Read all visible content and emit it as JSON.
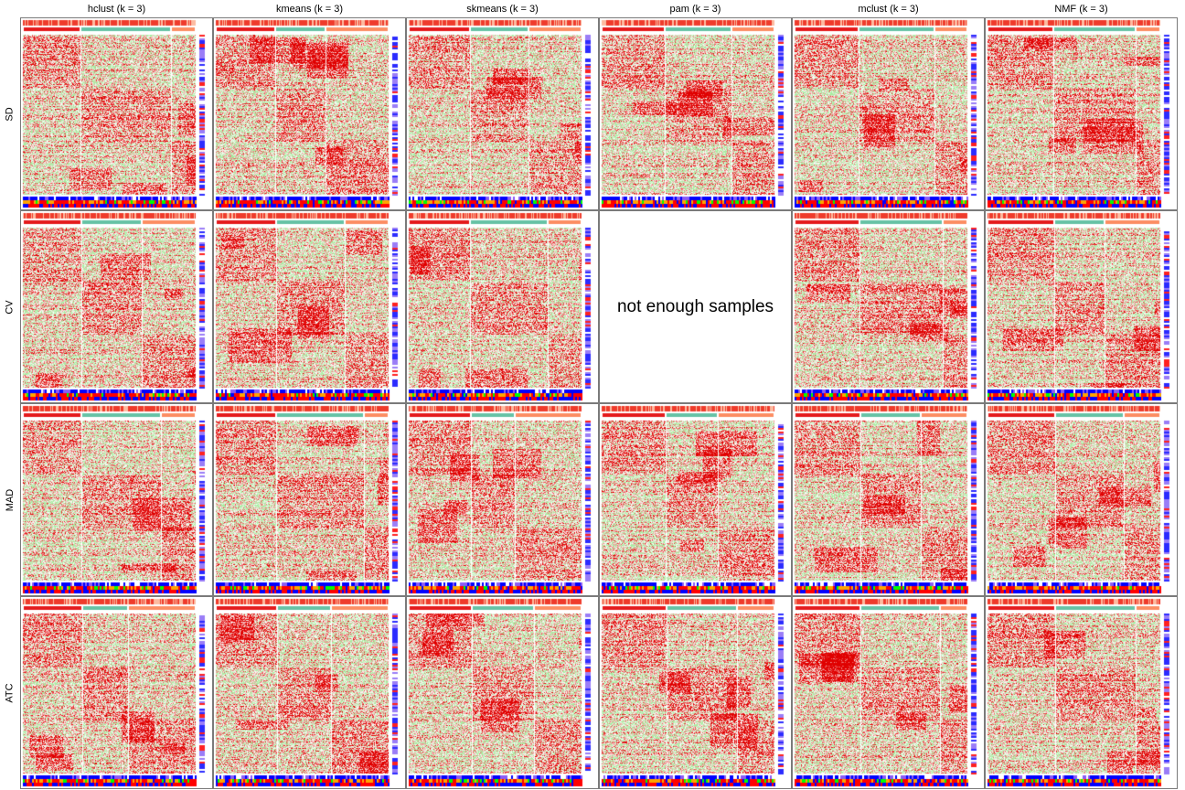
{
  "chart_data": {
    "type": "heatmap",
    "title": "",
    "columns": [
      "hclust (k = 3)",
      "kmeans (k = 3)",
      "skmeans (k = 3)",
      "pam (k = 3)",
      "mclust (k = 3)",
      "NMF (k = 3)"
    ],
    "rows": [
      "SD",
      "CV",
      "MAD",
      "ATC"
    ],
    "k": 3,
    "empty_panels": [
      {
        "row": "CV",
        "column": "pam (k = 3)",
        "message": "not enough samples"
      }
    ],
    "heatmap_colors": {
      "low": "#00c000",
      "mid": "#ffffff",
      "high": "#e00000"
    },
    "class_colors": [
      "#e41a1c",
      "#66c2a5",
      "#fc8d62"
    ],
    "annotation_colors": [
      "#0000ff",
      "#8a5cf5",
      "#ffffff",
      "#ff0000",
      "#ffa500",
      "#00ff00"
    ],
    "grid": false,
    "legend": "none"
  }
}
